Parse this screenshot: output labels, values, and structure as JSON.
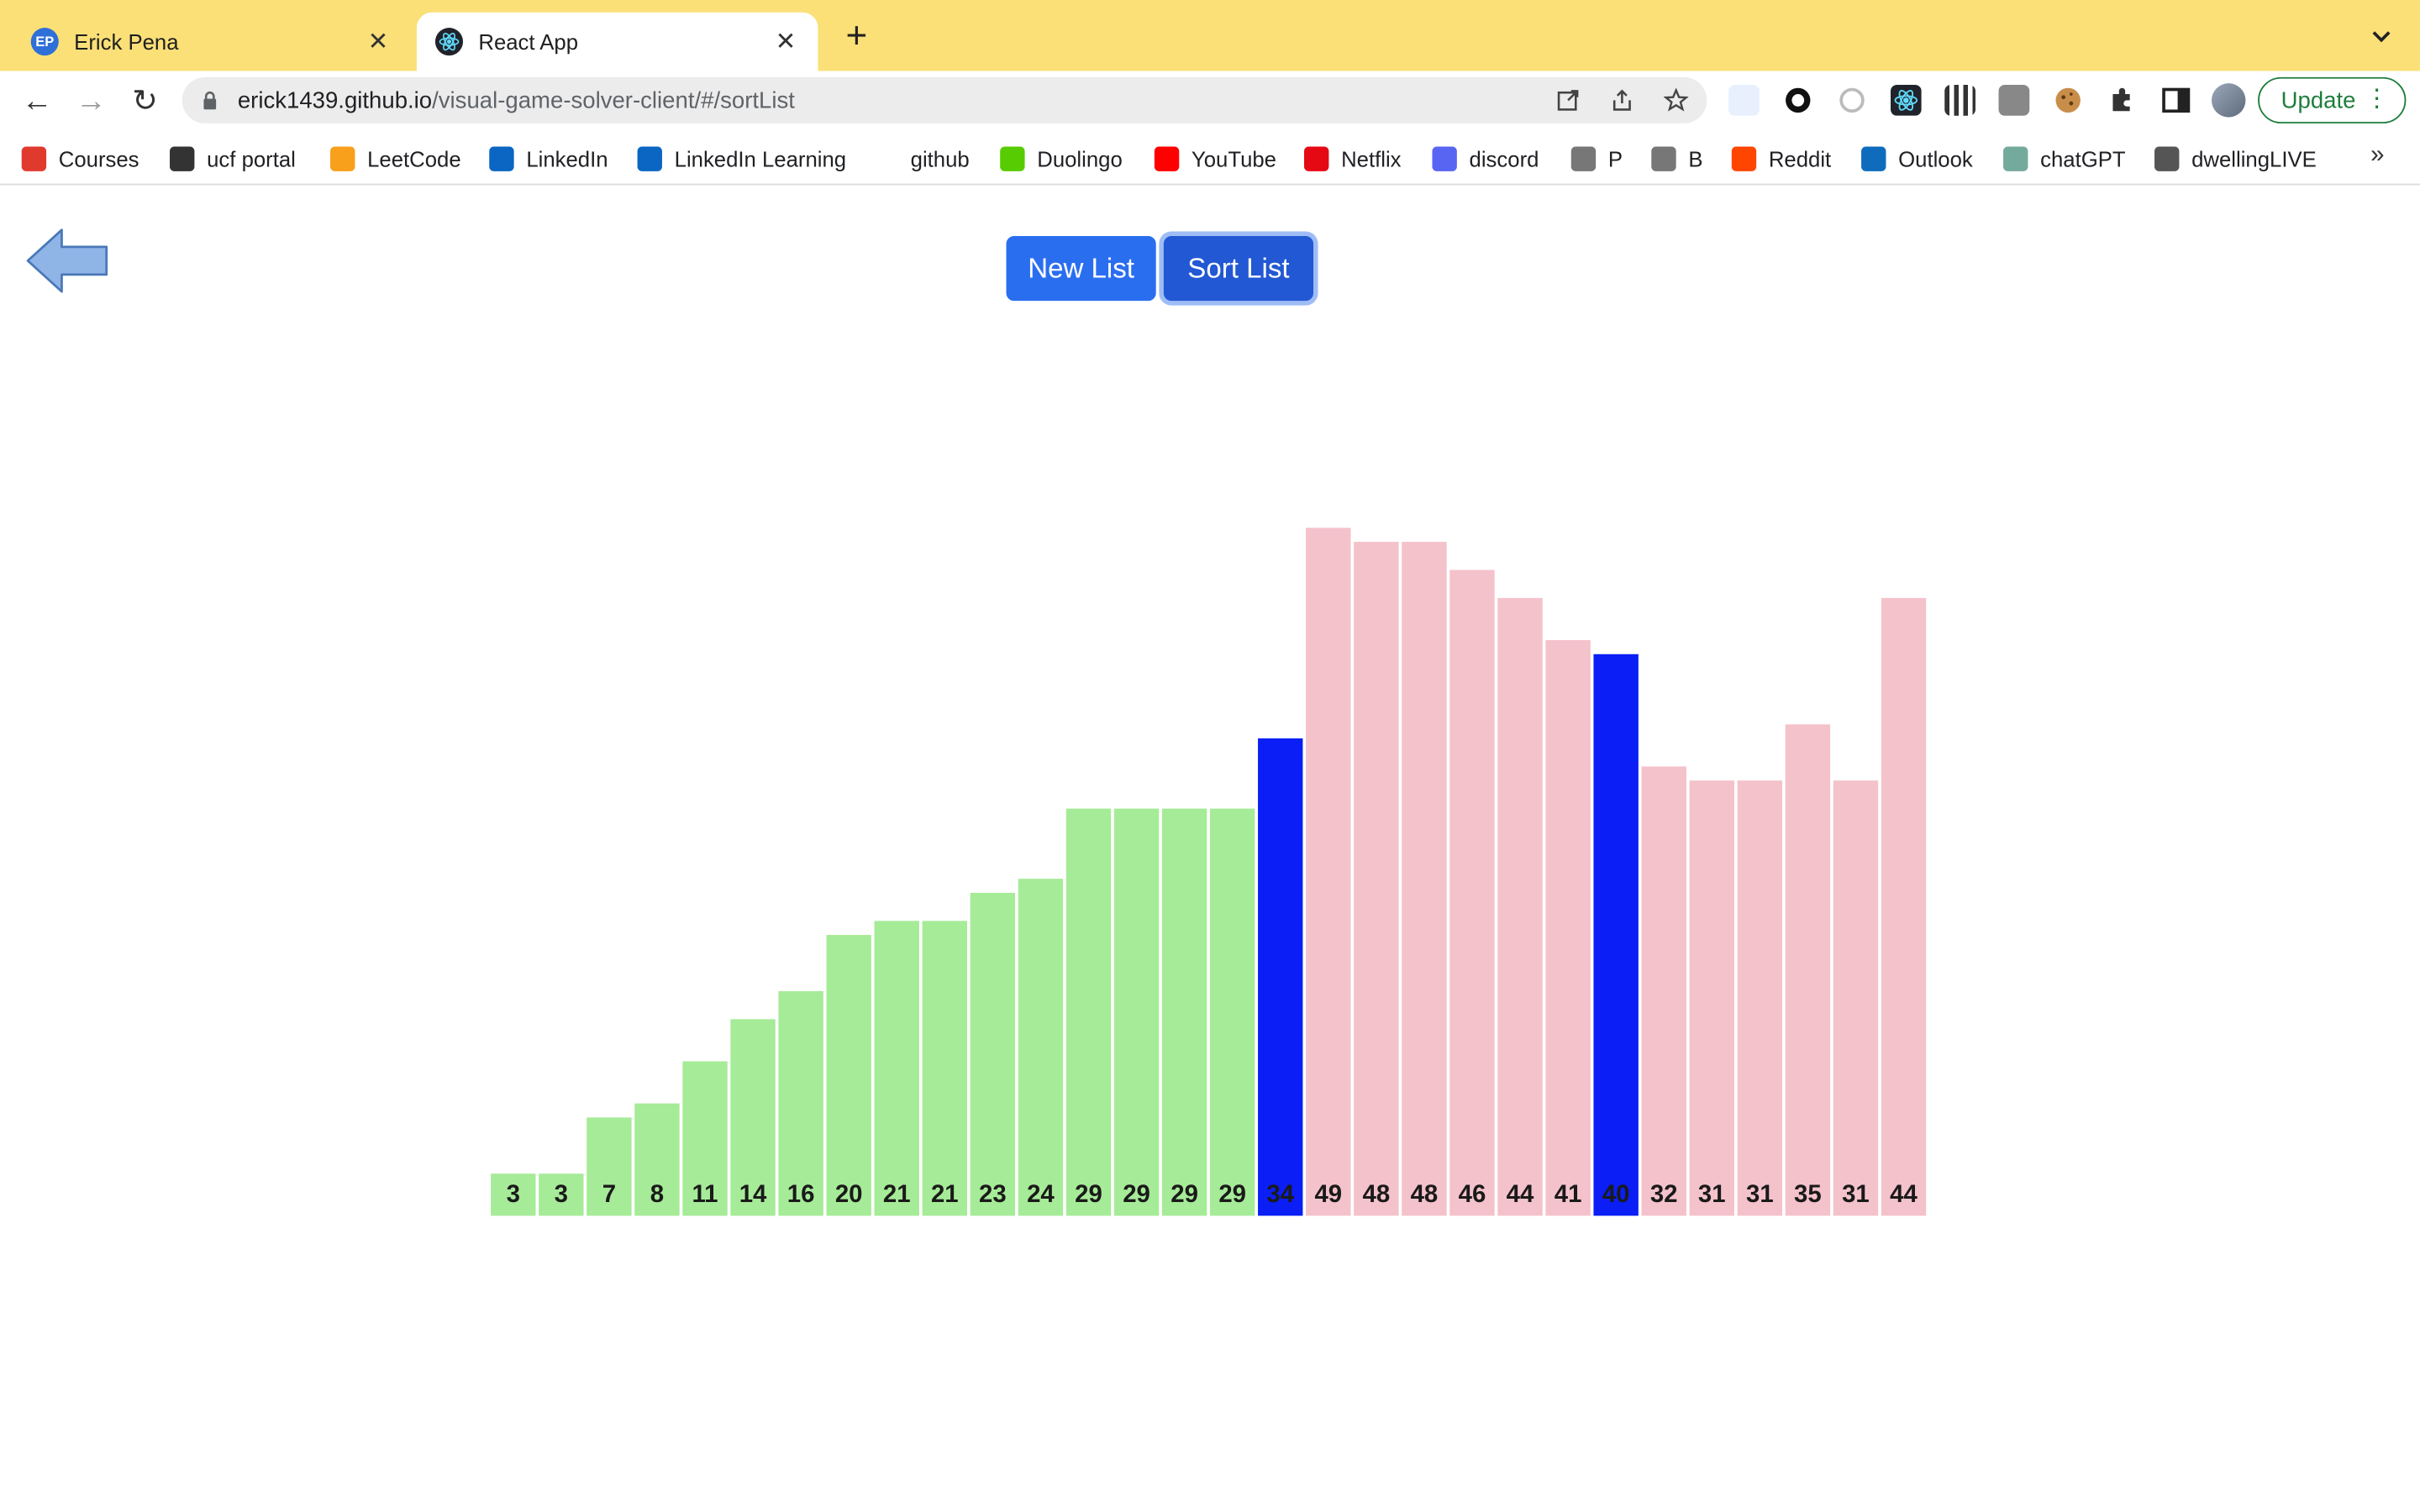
{
  "browser": {
    "tabs": [
      {
        "title": "Erick Pena",
        "favicon": "ep-icon",
        "active": false
      },
      {
        "title": "React App",
        "favicon": "react-icon",
        "active": true
      }
    ],
    "address": {
      "host": "erick1439.github.io",
      "path": "/visual-game-solver-client/#/sortList"
    },
    "update_label": "Update",
    "bookmarks": [
      {
        "label": "Courses",
        "icon": "canvas-icon",
        "color": "#e03a2f"
      },
      {
        "label": "ucf portal",
        "icon": "ucf-icon",
        "color": "#333333"
      },
      {
        "label": "LeetCode",
        "icon": "leetcode-icon",
        "color": "#f89f1b"
      },
      {
        "label": "LinkedIn",
        "icon": "linkedin-icon",
        "color": "#0a66c2"
      },
      {
        "label": "LinkedIn Learning",
        "icon": "linkedin-learning-icon",
        "color": "#0a66c2"
      },
      {
        "label": "github",
        "icon": "github-icon",
        "color": "#ffffff"
      },
      {
        "label": "Duolingo",
        "icon": "duolingo-icon",
        "color": "#58cc02"
      },
      {
        "label": "YouTube",
        "icon": "youtube-icon",
        "color": "#ff0000"
      },
      {
        "label": "Netflix",
        "icon": "netflix-icon",
        "color": "#e50914"
      },
      {
        "label": "discord",
        "icon": "discord-icon",
        "color": "#5865f2"
      },
      {
        "label": "P",
        "icon": "folder-icon",
        "color": "#777777"
      },
      {
        "label": "B",
        "icon": "folder-icon",
        "color": "#777777"
      },
      {
        "label": "Reddit",
        "icon": "reddit-icon",
        "color": "#ff4500"
      },
      {
        "label": "Outlook",
        "icon": "outlook-icon",
        "color": "#0f6cbd"
      },
      {
        "label": "chatGPT",
        "icon": "chatgpt-icon",
        "color": "#74aa9c"
      },
      {
        "label": "dwellingLIVE",
        "icon": "dwelling-icon",
        "color": "#555555"
      }
    ]
  },
  "page": {
    "new_list_label": "New List",
    "sort_list_label": "Sort List"
  },
  "colors": {
    "sorted": "#a6eb98",
    "active": "#0a1ef5",
    "unsorted": "#f4c2cb"
  },
  "chart_data": {
    "type": "bar",
    "values": [
      3,
      3,
      7,
      8,
      11,
      14,
      16,
      20,
      21,
      21,
      23,
      24,
      29,
      29,
      29,
      29,
      34,
      49,
      48,
      48,
      46,
      44,
      41,
      40,
      32,
      31,
      31,
      35,
      31,
      44
    ],
    "states": [
      "sorted",
      "sorted",
      "sorted",
      "sorted",
      "sorted",
      "sorted",
      "sorted",
      "sorted",
      "sorted",
      "sorted",
      "sorted",
      "sorted",
      "sorted",
      "sorted",
      "sorted",
      "sorted",
      "active",
      "unsorted",
      "unsorted",
      "unsorted",
      "unsorted",
      "unsorted",
      "unsorted",
      "active",
      "unsorted",
      "unsorted",
      "unsorted",
      "unsorted",
      "unsorted",
      "unsorted"
    ]
  }
}
